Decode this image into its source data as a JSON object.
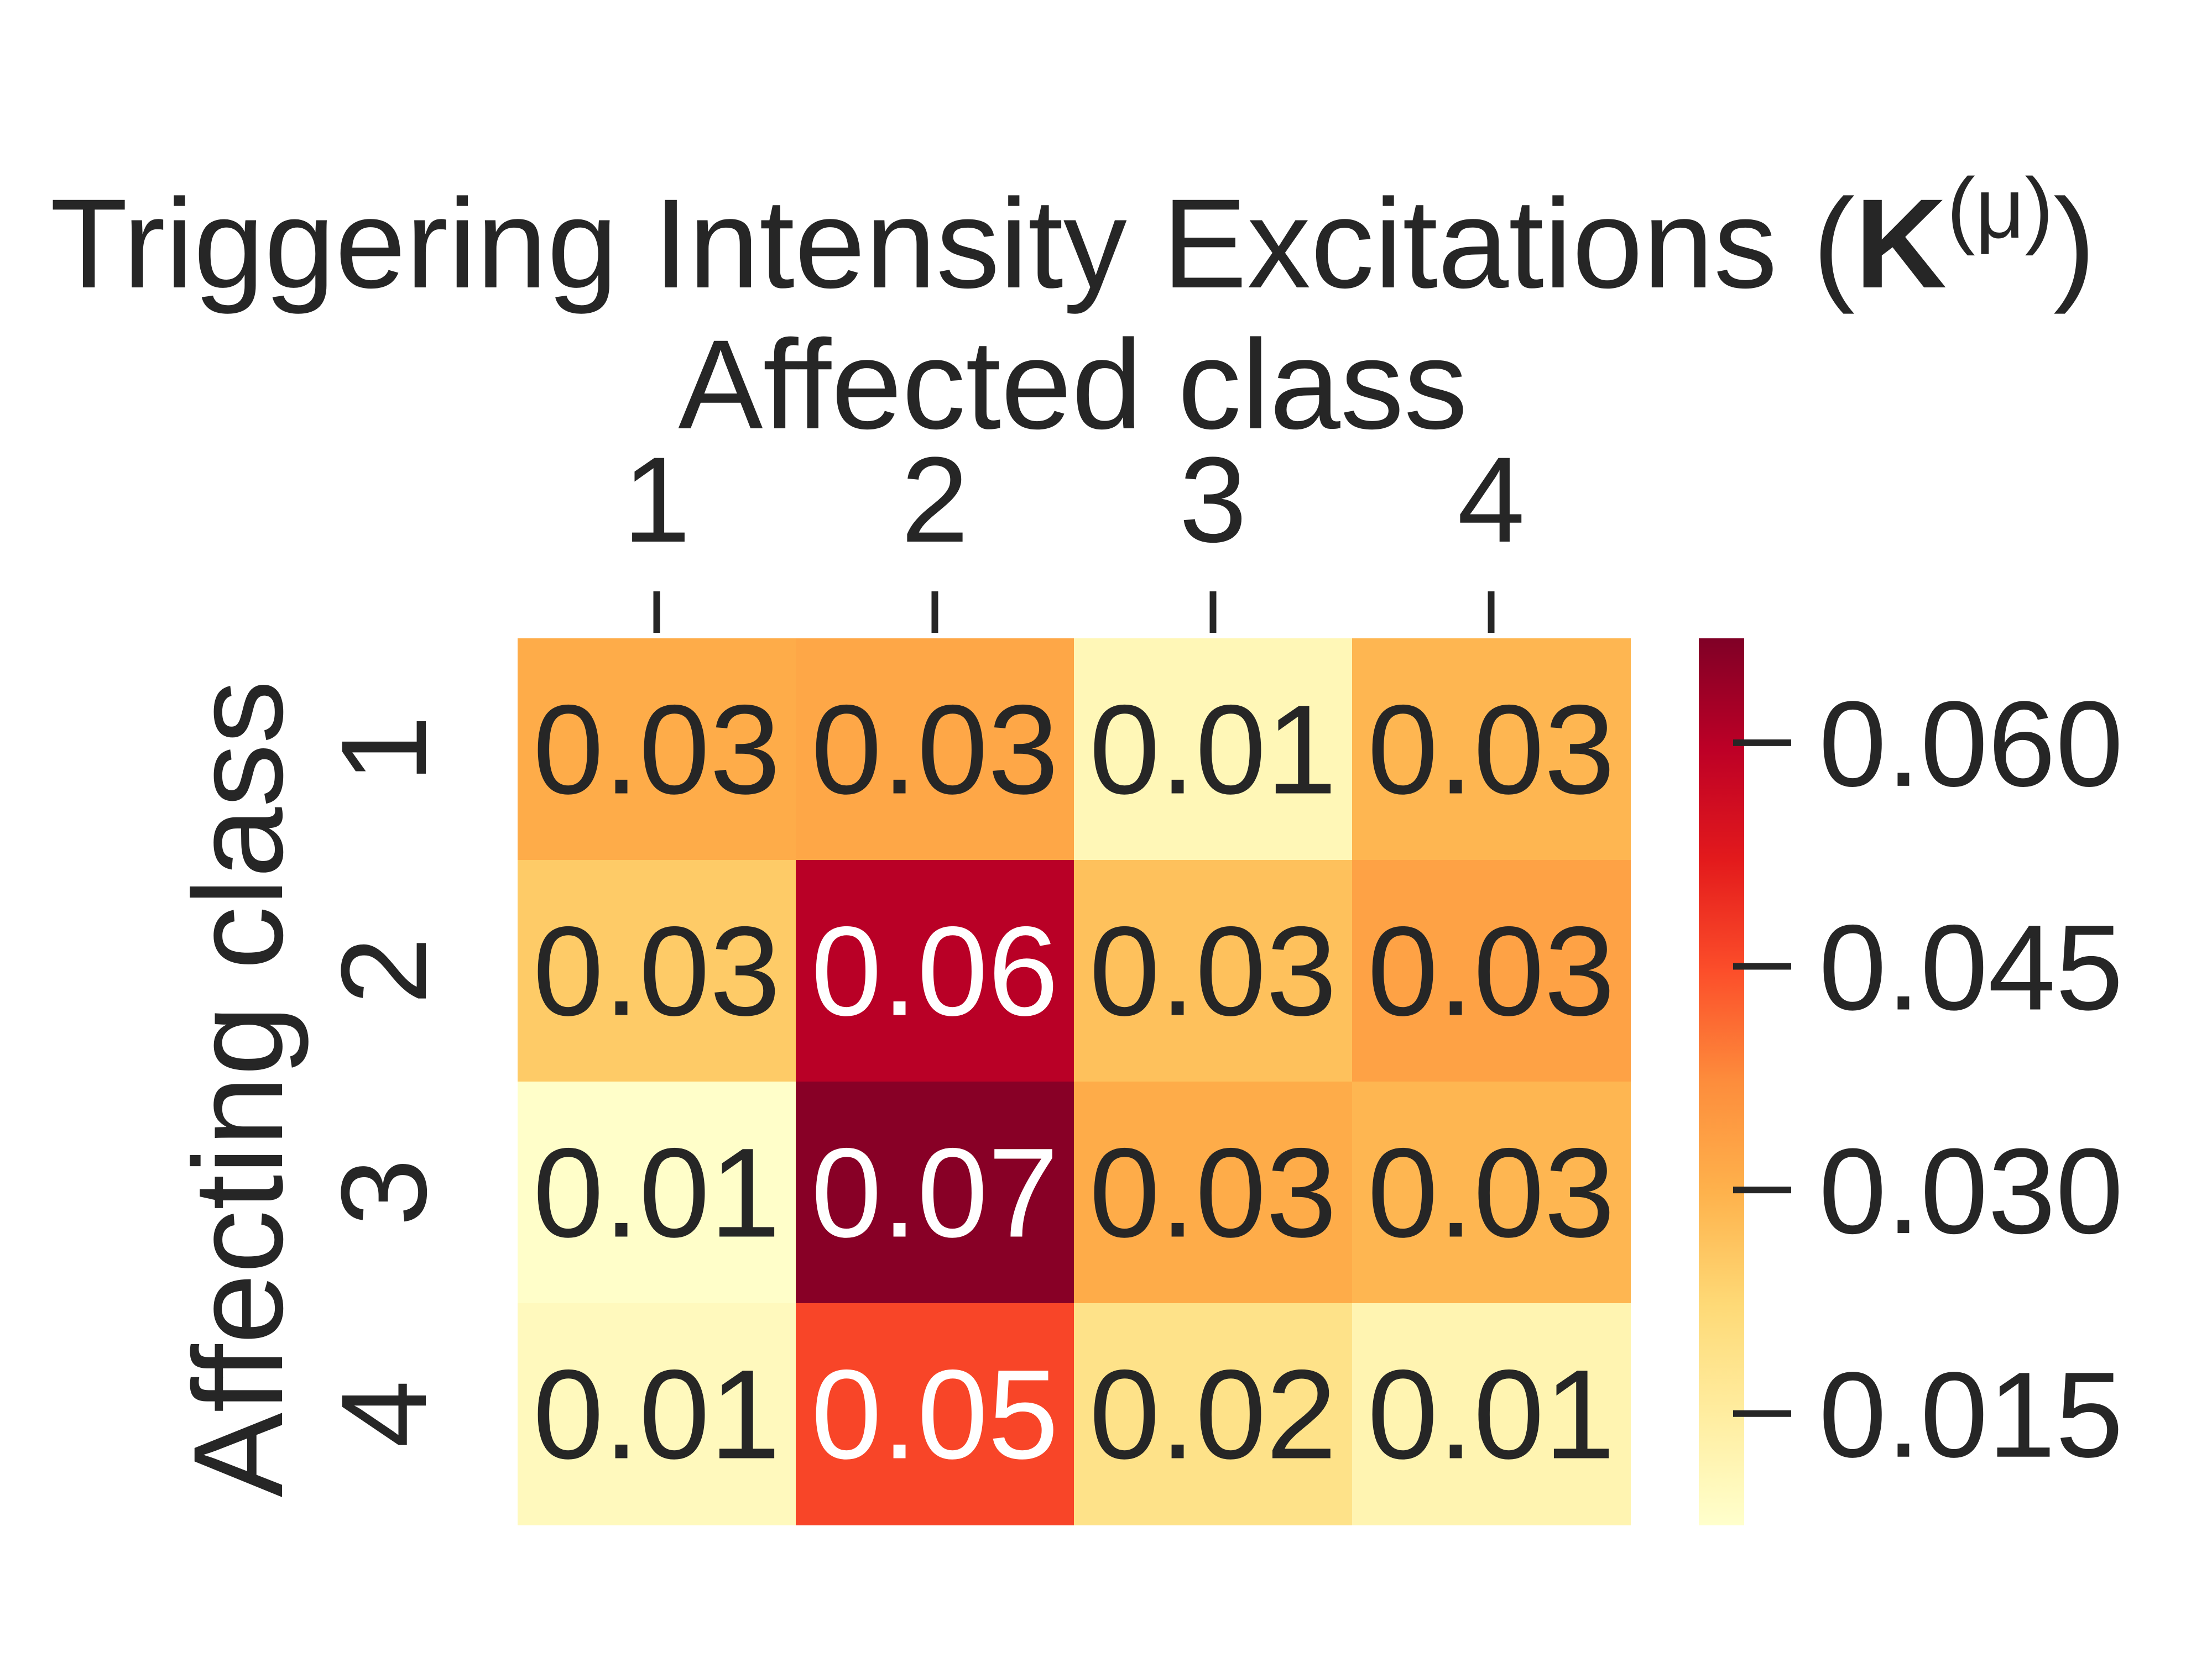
{
  "chart_data": {
    "type": "heatmap",
    "title": {
      "main": "Triggering Intensity Excitations (",
      "bold_symbol": "K",
      "superscript": "(μ)",
      "close": ")"
    },
    "xlabel": "Affected class",
    "ylabel": "Affecting class",
    "x_categories": [
      "1",
      "2",
      "3",
      "4"
    ],
    "y_categories": [
      "1",
      "2",
      "3",
      "4"
    ],
    "values": [
      [
        0.031,
        0.032,
        0.011,
        0.029
      ],
      [
        0.025,
        0.06,
        0.027,
        0.033
      ],
      [
        0.008,
        0.066,
        0.031,
        0.029
      ],
      [
        0.01,
        0.046,
        0.019,
        0.012
      ]
    ],
    "cell_labels": [
      [
        "0.03",
        "0.03",
        "0.01",
        "0.03"
      ],
      [
        "0.03",
        "0.06",
        "0.03",
        "0.03"
      ],
      [
        "0.01",
        "0.07",
        "0.03",
        "0.03"
      ],
      [
        "0.01",
        "0.05",
        "0.02",
        "0.01"
      ]
    ],
    "colormap": "YlOrRd",
    "colorbar": {
      "vmin": 0.0075,
      "vmax": 0.067,
      "ticks": [
        0.015,
        0.03,
        0.045,
        0.06
      ],
      "tick_labels": [
        "0.015",
        "0.030",
        "0.045",
        "0.060"
      ]
    },
    "x_axis_position": "top"
  }
}
